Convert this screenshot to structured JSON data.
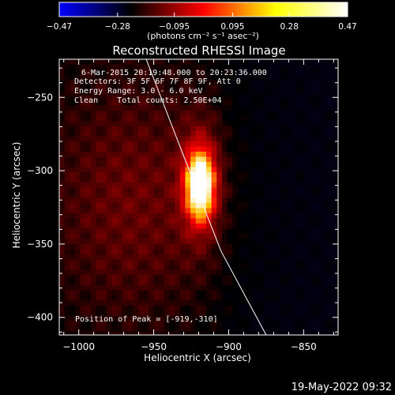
{
  "chart_data": {
    "type": "heatmap",
    "title": "Reconstructed RHESSI Image",
    "xlabel": "Heliocentric X (arcsec)",
    "ylabel": "Heliocentric Y (arcsec)",
    "xlim": [
      -1013,
      -827
    ],
    "ylim": [
      -412,
      -224
    ],
    "x_ticks": [
      -1000,
      -950,
      -900,
      -850
    ],
    "y_ticks": [
      -250,
      -300,
      -350,
      -400
    ],
    "x_tick_labels": [
      "−1000",
      "−950",
      "−900",
      "−850"
    ],
    "y_tick_labels": [
      "−250",
      "−300",
      "−350",
      "−400"
    ],
    "colorbar": {
      "min": -0.47,
      "max": 0.47,
      "ticks": [
        -0.47,
        -0.28,
        -0.095,
        0.095,
        0.28,
        0.47
      ],
      "tick_labels": [
        "−0.47",
        "−0.28",
        "−0.095",
        "0.095",
        "0.28",
        "0.47"
      ],
      "unit_label": "(photons cm⁻² s⁻¹ asec⁻²)",
      "colors": [
        "#0000ff",
        "#000000",
        "#ff0000",
        "#ffff00",
        "#ffffff"
      ]
    },
    "annotations": [
      "6-Mar-2015 20:19:48.000 to 20:23:36.000",
      "Detectors: 3F 5F 6F 7F 8F 9F, Att 0",
      "Energy Range: 3.0 - 6.0 keV",
      "Clean    Total counts: 2.50E+04",
      "Position of Peak = [-919,-310]"
    ],
    "peak": {
      "x": -919,
      "y": -310
    },
    "limb_curve": [
      [
        -955,
        -224
      ],
      [
        -930,
        -290
      ],
      [
        -905,
        -355
      ],
      [
        -875,
        -412
      ]
    ],
    "grid": false,
    "legend": "none"
  },
  "footer": {
    "timestamp": "19-May-2022 09:32"
  }
}
